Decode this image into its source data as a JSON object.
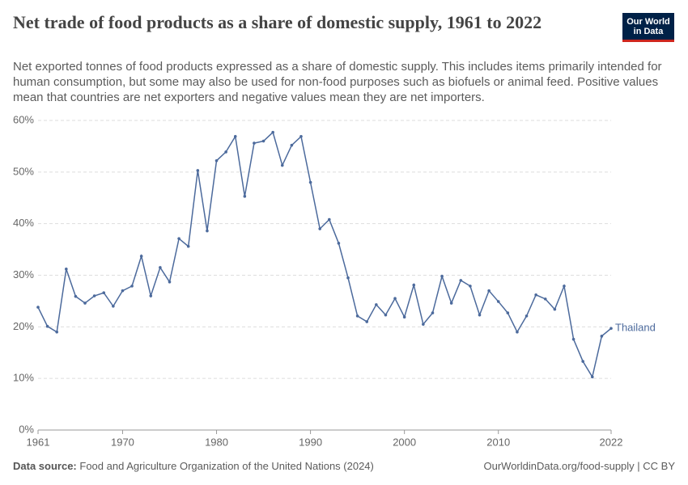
{
  "header": {
    "title": "Net trade of food products as a share of domestic supply, 1961 to 2022",
    "subtitle": "Net exported tonnes of food products expressed as a share of domestic supply. This includes items primarily intended for human consumption, but some may also be used for non-food purposes such as biofuels or animal feed. Positive values mean that countries are net exporters and negative values mean they are net importers.",
    "logo": "Our World in Data"
  },
  "chart_data": {
    "type": "line",
    "x": [
      1961,
      1962,
      1963,
      1964,
      1965,
      1966,
      1967,
      1968,
      1969,
      1970,
      1971,
      1972,
      1973,
      1974,
      1975,
      1976,
      1977,
      1978,
      1979,
      1980,
      1981,
      1982,
      1983,
      1984,
      1985,
      1986,
      1987,
      1988,
      1989,
      1990,
      1991,
      1992,
      1993,
      1994,
      1995,
      1996,
      1997,
      1998,
      1999,
      2000,
      2001,
      2002,
      2003,
      2004,
      2005,
      2006,
      2007,
      2008,
      2009,
      2010,
      2011,
      2012,
      2013,
      2014,
      2015,
      2016,
      2017,
      2018,
      2019,
      2020,
      2021,
      2022
    ],
    "series": [
      {
        "name": "Thailand",
        "color": "#4c6a9c",
        "values": [
          23.8,
          20.1,
          19.0,
          31.2,
          25.9,
          24.6,
          26.0,
          26.6,
          24.0,
          27.0,
          27.9,
          33.7,
          26.0,
          31.5,
          28.7,
          37.1,
          35.6,
          50.3,
          38.6,
          52.2,
          53.9,
          56.9,
          45.3,
          55.6,
          56.0,
          57.7,
          51.3,
          55.2,
          56.9,
          48.0,
          39.0,
          40.8,
          36.2,
          29.5,
          22.1,
          21.0,
          24.3,
          22.3,
          25.5,
          21.9,
          28.1,
          20.5,
          22.7,
          29.8,
          24.6,
          29.0,
          27.9,
          22.3,
          27.0,
          24.9,
          22.7,
          19.0,
          22.1,
          26.2,
          25.4,
          23.4,
          27.9,
          17.6,
          13.3,
          10.3,
          18.2,
          19.7
        ]
      }
    ],
    "xlim": [
      1961,
      2022
    ],
    "xticks": [
      1961,
      1970,
      1980,
      1990,
      2000,
      2010,
      2022
    ],
    "ylim": [
      0,
      60
    ],
    "yticks": [
      {
        "value": 0,
        "label": "0%"
      },
      {
        "value": 10,
        "label": "10%"
      },
      {
        "value": 20,
        "label": "20%"
      },
      {
        "value": 30,
        "label": "30%"
      },
      {
        "value": 40,
        "label": "40%"
      },
      {
        "value": 50,
        "label": "50%"
      },
      {
        "value": 60,
        "label": "60%"
      }
    ],
    "grid": true
  },
  "footer": {
    "source_label": "Data source:",
    "source": "Food and Agriculture Organization of the United Nations (2024)",
    "url": "OurWorldinData.org/food-supply | CC BY"
  }
}
